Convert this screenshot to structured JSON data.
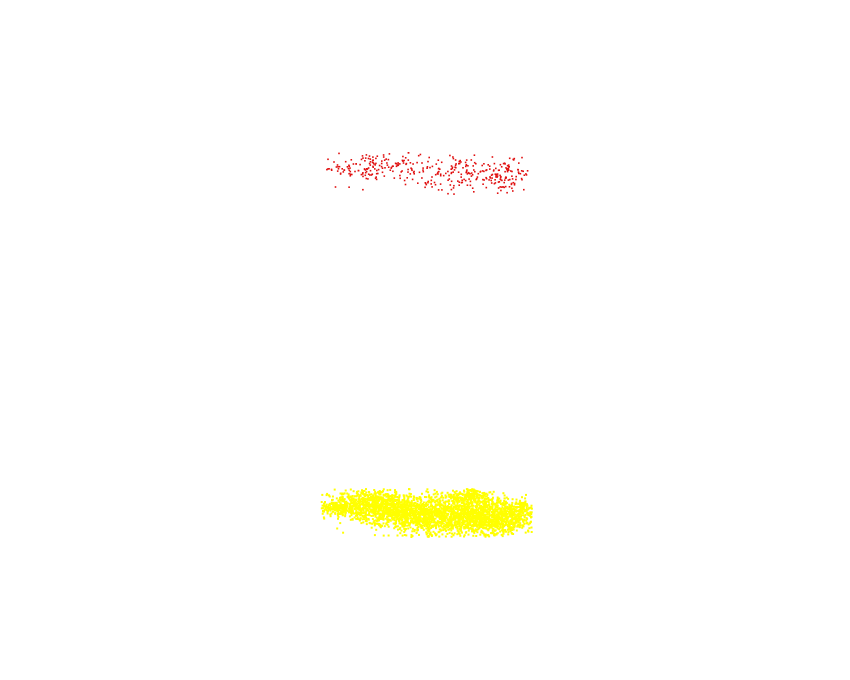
{
  "scene": {
    "background": "#ffffff",
    "clusters": [
      {
        "name": "red-points",
        "color": "#e01010",
        "density": "sparse"
      },
      {
        "name": "yellow-points",
        "color": "#ffff00",
        "density": "dense"
      }
    ]
  }
}
